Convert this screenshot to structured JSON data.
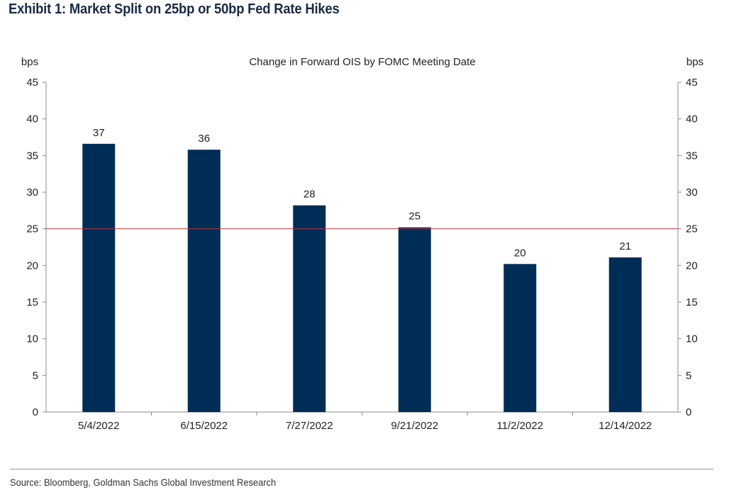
{
  "exhibit": {
    "title": "Exhibit 1: Market Split on 25bp or 50bp Fed Rate Hikes",
    "source": "Source: Bloomberg, Goldman Sachs Global Investment Research"
  },
  "colors": {
    "bar": "#002d56",
    "reference_line": "#b2393f",
    "axis": "#8c8c8c"
  },
  "chart_data": {
    "type": "bar",
    "title": "Change in Forward OIS by FOMC Meeting Date",
    "ylabel_left": "bps",
    "ylabel_right": "bps",
    "categories": [
      "5/4/2022",
      "6/15/2022",
      "7/27/2022",
      "9/21/2022",
      "11/2/2022",
      "12/14/2022"
    ],
    "values": [
      36.6,
      35.8,
      28.2,
      25.2,
      20.2,
      21.1
    ],
    "data_labels": [
      "37",
      "36",
      "28",
      "25",
      "20",
      "21"
    ],
    "ylim": [
      0,
      45
    ],
    "yticks": [
      0,
      5,
      10,
      15,
      20,
      25,
      30,
      35,
      40,
      45
    ],
    "reference_line": 25,
    "grid": false,
    "legend": "none"
  }
}
